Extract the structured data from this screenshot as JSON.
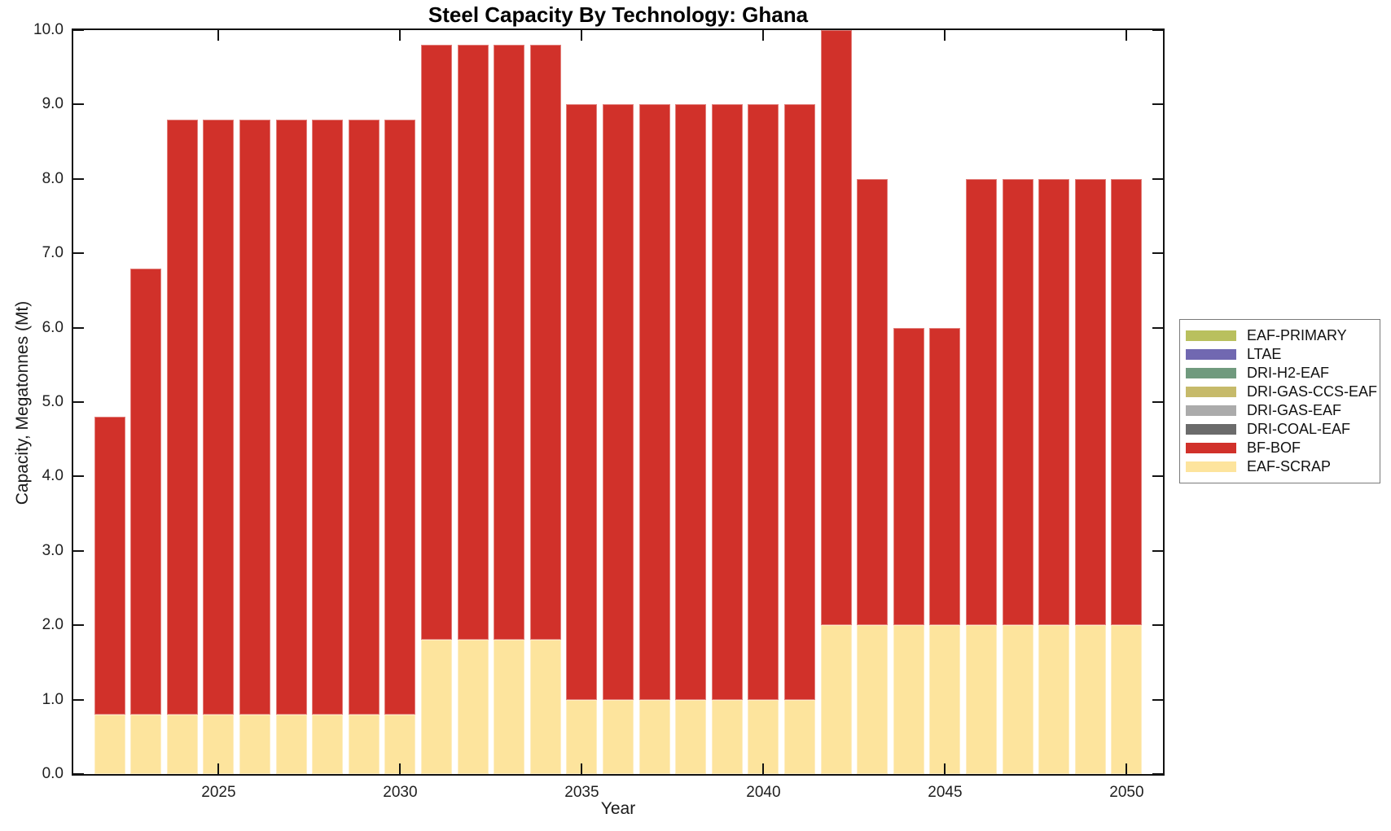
{
  "title": "Steel Capacity By Technology: Ghana",
  "axes": {
    "x_label": "Year",
    "y_label": "Capacity, Megatonnes (Mt)",
    "x_ticks": [
      2025,
      2030,
      2035,
      2040,
      2045,
      2050
    ],
    "y_ticks": [
      "0.0",
      "1.0",
      "2.0",
      "3.0",
      "4.0",
      "5.0",
      "6.0",
      "7.0",
      "8.0",
      "9.0",
      "10.0"
    ],
    "xlim": [
      2021,
      2051
    ],
    "ylim": [
      0,
      10
    ]
  },
  "legend": {
    "position": "right",
    "entries": [
      {
        "label": "EAF-PRIMARY",
        "color": "#b9c05e"
      },
      {
        "label": "LTAE",
        "color": "#7168b1"
      },
      {
        "label": "DRI-H2-EAF",
        "color": "#709a7e"
      },
      {
        "label": "DRI-GAS-CCS-EAF",
        "color": "#c6ba6a"
      },
      {
        "label": "DRI-GAS-EAF",
        "color": "#ababab"
      },
      {
        "label": "DRI-COAL-EAF",
        "color": "#6b6b6b"
      },
      {
        "label": "BF-BOF",
        "color": "#d1312a"
      },
      {
        "label": "EAF-SCRAP",
        "color": "#fde49d"
      }
    ]
  },
  "chart_data": {
    "type": "bar",
    "stacked": true,
    "stack_order": "bottom-to-top",
    "title": "Steel Capacity By Technology: Ghana",
    "xlabel": "Year",
    "ylabel": "Capacity, Megatonnes (Mt)",
    "x": [
      2022,
      2023,
      2024,
      2025,
      2026,
      2027,
      2028,
      2029,
      2030,
      2031,
      2032,
      2033,
      2034,
      2035,
      2036,
      2037,
      2038,
      2039,
      2040,
      2041,
      2042,
      2043,
      2044,
      2045,
      2046,
      2047,
      2048,
      2049,
      2050
    ],
    "series": [
      {
        "name": "EAF-SCRAP",
        "color": "#fde49d",
        "values": [
          0.8,
          0.8,
          0.8,
          0.8,
          0.8,
          0.8,
          0.8,
          0.8,
          0.8,
          1.8,
          1.8,
          1.8,
          1.8,
          1.0,
          1.0,
          1.0,
          1.0,
          1.0,
          1.0,
          1.0,
          2.0,
          2.0,
          2.0,
          2.0,
          2.0,
          2.0,
          2.0,
          2.0,
          2.0
        ]
      },
      {
        "name": "BF-BOF",
        "color": "#d1312a",
        "values": [
          4.0,
          6.0,
          8.0,
          8.0,
          8.0,
          8.0,
          8.0,
          8.0,
          8.0,
          8.0,
          8.0,
          8.0,
          8.0,
          8.0,
          8.0,
          8.0,
          8.0,
          8.0,
          8.0,
          8.0,
          8.0,
          6.0,
          4.0,
          4.0,
          6.0,
          6.0,
          6.0,
          6.0,
          6.0
        ]
      }
    ],
    "totals": [
      4.8,
      6.8,
      8.8,
      8.8,
      8.8,
      8.8,
      8.8,
      8.8,
      8.8,
      9.8,
      9.8,
      9.8,
      9.8,
      9.0,
      9.0,
      9.0,
      9.0,
      9.0,
      9.0,
      9.0,
      10.0,
      8.0,
      6.0,
      6.0,
      8.0,
      8.0,
      8.0,
      8.0,
      8.0
    ],
    "ylim": [
      0,
      10
    ],
    "grid": false,
    "legend_position": "right"
  }
}
